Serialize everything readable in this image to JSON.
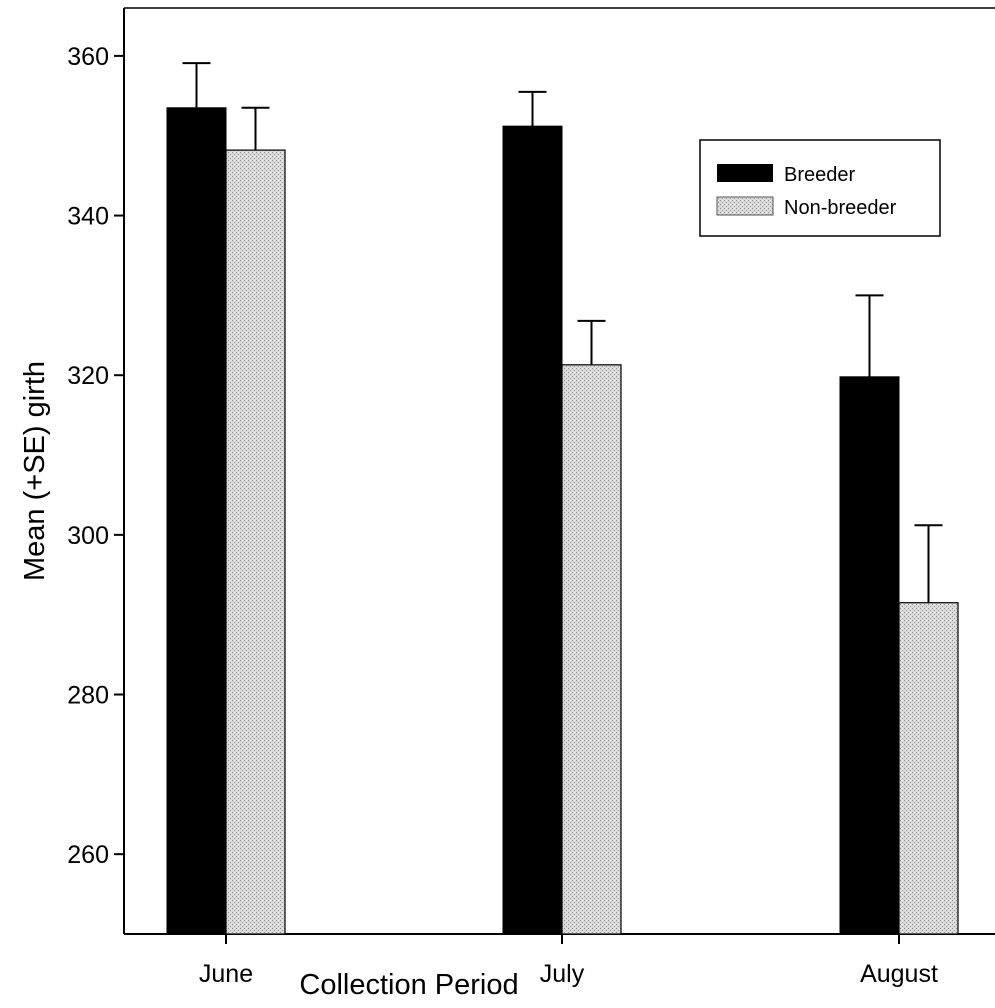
{
  "chart_data": {
    "type": "bar",
    "categories": [
      "June",
      "July",
      "August"
    ],
    "series": [
      {
        "name": "Breeder",
        "values": [
          353.5,
          351.2,
          319.8
        ],
        "errors": [
          5.6,
          4.3,
          10.2
        ],
        "color": "#000000"
      },
      {
        "name": "Non-breeder",
        "values": [
          348.2,
          321.3,
          291.5
        ],
        "errors": [
          5.3,
          5.5,
          9.7
        ],
        "color": "#c8c8c8"
      }
    ],
    "xlabel": "Collection Period",
    "ylabel": "Mean (+SE) girth",
    "ylim": [
      250,
      366
    ],
    "yticks": [
      260,
      280,
      300,
      320,
      340,
      360
    ],
    "grid": false,
    "legend_position": "top-right"
  }
}
